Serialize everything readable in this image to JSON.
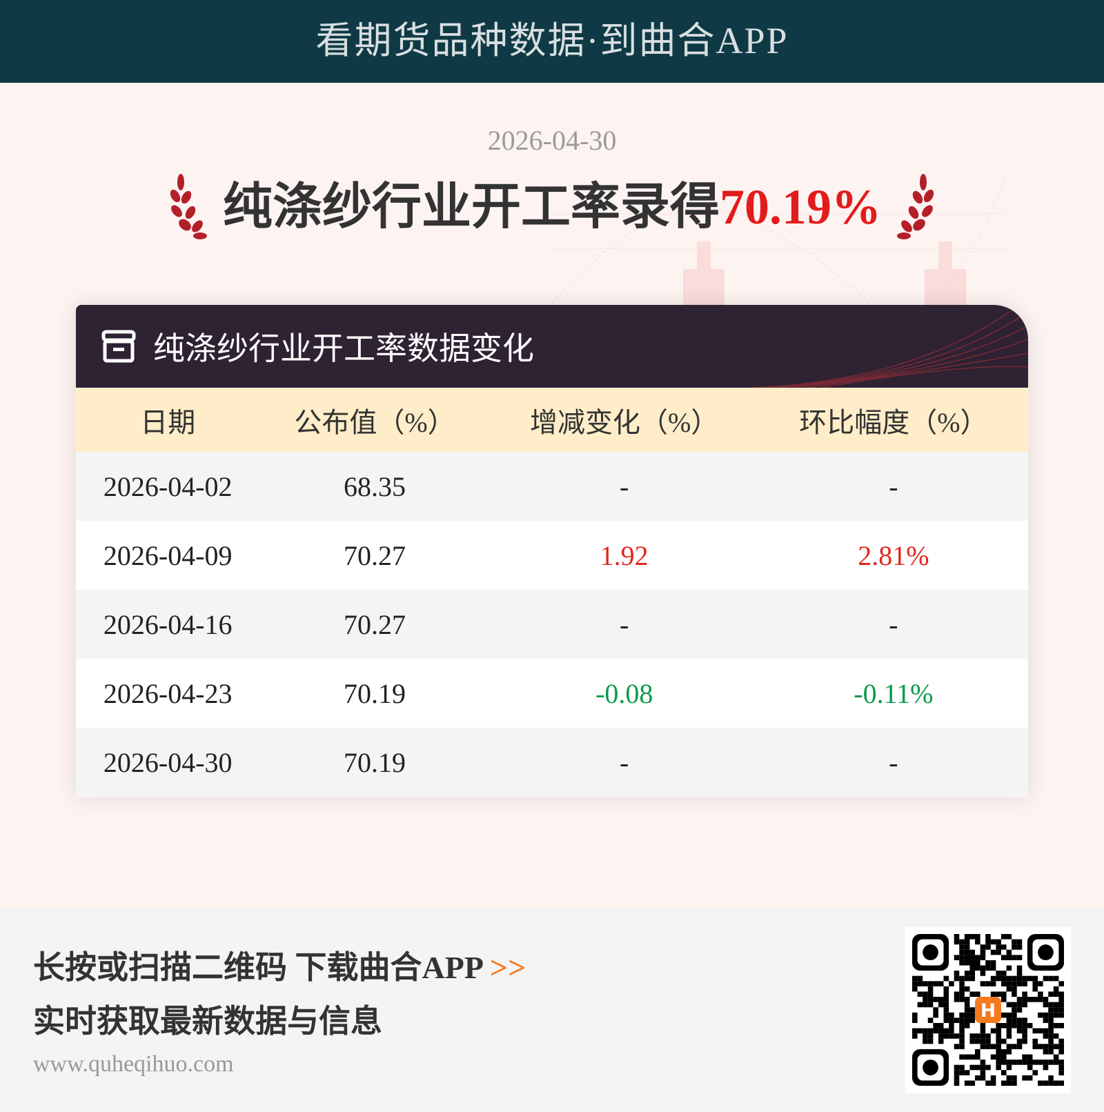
{
  "banner": "看期货品种数据·到曲合APP",
  "date": "2026-04-30",
  "headline": {
    "text": "纯涤纱行业开工率录得",
    "value": "70.19%"
  },
  "card": {
    "title": "纯涤纱行业开工率数据变化",
    "icon": "archive-box-icon",
    "columns": [
      "日期",
      "公布值（%）",
      "增减变化（%）",
      "环比幅度（%）"
    ],
    "rows": [
      {
        "date": "2026-04-02",
        "value": "68.35",
        "change": "-",
        "pct": "-",
        "trend": "none"
      },
      {
        "date": "2026-04-09",
        "value": "70.27",
        "change": "1.92",
        "pct": "2.81%",
        "trend": "up"
      },
      {
        "date": "2026-04-16",
        "value": "70.27",
        "change": "-",
        "pct": "-",
        "trend": "none"
      },
      {
        "date": "2026-04-23",
        "value": "70.19",
        "change": "-0.08",
        "pct": "-0.11%",
        "trend": "down"
      },
      {
        "date": "2026-04-30",
        "value": "70.19",
        "change": "-",
        "pct": "-",
        "trend": "none"
      }
    ]
  },
  "colors": {
    "up": "#e0281e",
    "down": "#0a9a4a",
    "accent": "#e21c1c",
    "banner_bg": "#0f3a45"
  },
  "footer": {
    "line1": "长按或扫描二维码 下载曲合APP",
    "arrow": ">>",
    "line2": "实时获取最新数据与信息",
    "url": "www.quheqihuo.com"
  }
}
